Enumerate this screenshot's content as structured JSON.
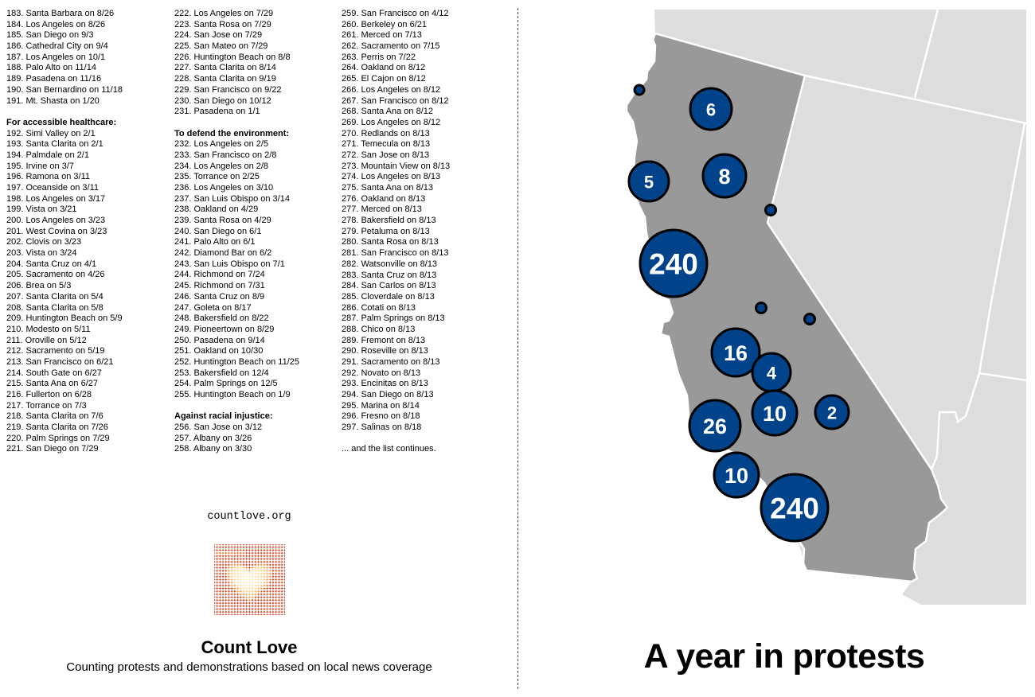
{
  "lists": [
    {
      "blocks": [
        {
          "heading": "",
          "items": [
            "183. Santa Barbara on 8/26",
            "184. Los Angeles on 8/26",
            "185. San Diego on 9/3",
            "186. Cathedral City on 9/4",
            "187. Los Angeles on 10/1",
            "188. Palo Alto on 11/14",
            "189. Pasadena on 11/16",
            "190. San Bernardino on 11/18",
            "191. Mt. Shasta on 1/20"
          ]
        },
        {
          "heading": "For accessible healthcare:",
          "items": [
            "192. Simi Valley on 2/1",
            "193. Santa Clarita on 2/1",
            "194. Palmdale on 2/1",
            "195. Irvine on 3/7",
            "196. Ramona on 3/11",
            "197. Oceanside on 3/11",
            "198. Los Angeles on 3/17",
            "199. Vista on 3/21",
            "200. Los Angeles on 3/23",
            "201. West Covina on 3/23",
            "202. Clovis on 3/23",
            "203. Vista on 3/24",
            "204. Santa Cruz on 4/1",
            "205. Sacramento on 4/26",
            "206. Brea on 5/3",
            "207. Santa Clarita on 5/4",
            "208. Santa Clarita on 5/8",
            "209. Huntington Beach on 5/9",
            "210. Modesto on 5/11",
            "211. Oroville on 5/12",
            "212. Sacramento on 5/19",
            "213. San Francisco on 6/21",
            "214. South Gate on 6/27",
            "215. Santa Ana on 6/27",
            "216. Fullerton on 6/28",
            "217. Torrance on 7/3",
            "218. Santa Clarita on 7/6",
            "219. Santa Clarita on 7/26",
            "220. Palm Springs on 7/29",
            "221. San Diego on 7/29"
          ]
        }
      ]
    },
    {
      "blocks": [
        {
          "heading": "",
          "items": [
            "222. Los Angeles on 7/29",
            "223. Santa Rosa on 7/29",
            "224. San Jose on 7/29",
            "225. San Mateo on 7/29",
            "226. Huntington Beach on 8/8",
            "227. Santa Clarita on 8/14",
            "228. Santa Clarita on 9/19",
            "229. San Francisco on 9/22",
            "230. San Diego on 10/12",
            "231. Pasadena on 1/1"
          ]
        },
        {
          "heading": "To defend the environment:",
          "items": [
            "232. Los Angeles on 2/5",
            "233. San Francisco on 2/8",
            "234. Los Angeles on 2/8",
            "235. Torrance on 2/25",
            "236. Los Angeles on 3/10",
            "237. San Luis Obispo on 3/14",
            "238. Oakland on 4/29",
            "239. Santa Rosa on 4/29",
            "240. San Diego on 6/1",
            "241. Palo Alto on 6/1",
            "242. Diamond Bar on 6/2",
            "243. San Luis Obispo on 7/1",
            "244. Richmond on 7/24",
            "245. Richmond on 7/31",
            "246. Santa Cruz on 8/9",
            "247. Goleta on 8/17",
            "248. Bakersfield on 8/22",
            "249. Pioneertown on 8/29",
            "250. Pasadena on 9/14",
            "251. Oakland on 10/30",
            "252. Huntington Beach on 11/25",
            "253. Bakersfield on 12/4",
            "254. Palm Springs on 12/5",
            "255. Huntington Beach on 1/9"
          ]
        },
        {
          "heading": "Against racial injustice:",
          "items": [
            "256. San Jose on 3/12",
            "257. Albany on 3/26",
            "258. Albany on 3/30"
          ]
        }
      ]
    },
    {
      "blocks": [
        {
          "heading": "",
          "items": [
            "259. San Francisco on 4/12",
            "260. Berkeley on 6/21",
            "261. Merced on 7/13",
            "262. Sacramento on 7/15",
            "263. Perris on 7/22",
            "264. Oakland on 8/12",
            "265. El Cajon on 8/12",
            "266. Los Angeles on 8/12",
            "267. San Francisco on 8/12",
            "268. Santa Ana on 8/12",
            "269. Los Angeles on 8/12",
            "270. Redlands on 8/13",
            "271. Temecula on 8/13",
            "272. San Jose on 8/13",
            "273. Mountain View on 8/13",
            "274. Los Angeles on 8/13",
            "275. Santa Ana on 8/13",
            "276. Oakland on 8/13",
            "277. Merced on 8/13",
            "278. Bakersfield on 8/13",
            "279. Petaluma on 8/13",
            "280. Santa Rosa on 8/13",
            "281. San Francisco on 8/13",
            "282. Watsonville on 8/13",
            "283. Santa Cruz on 8/13",
            "284. San Carlos on 8/13",
            "285. Cloverdale on 8/13",
            "286. Cotati on 8/13",
            "287. Palm Springs on 8/13",
            "288. Chico on 8/13",
            "289. Fremont on 8/13",
            "290. Roseville on 8/13",
            "291. Sacramento on 8/13",
            "292. Novato on 8/13",
            "293. Encinitas on 8/13",
            "294. San Diego on 8/13",
            "295. Marina on 8/14",
            "296. Fresno on 8/18",
            "297. Salinas on 8/18"
          ]
        },
        {
          "heading": "",
          "items": [
            "... and the list continues."
          ]
        }
      ]
    }
  ],
  "footer": {
    "site": "countlove.org",
    "brand": "Count Love",
    "tagline": "Counting protests and demonstrations based on local news coverage"
  },
  "map": {
    "title": "A year in protests",
    "colors": {
      "bubble": "#00438a",
      "state": "#999999",
      "neighbors": "#dddddd",
      "borders": "#ffffff"
    },
    "bubbles": [
      {
        "label": ""
      },
      {
        "label": "6"
      },
      {
        "label": "5"
      },
      {
        "label": "8"
      },
      {
        "label": ""
      },
      {
        "label": "240"
      },
      {
        "label": ""
      },
      {
        "label": ""
      },
      {
        "label": "16"
      },
      {
        "label": "4"
      },
      {
        "label": "10"
      },
      {
        "label": "2"
      },
      {
        "label": "26"
      },
      {
        "label": "10"
      },
      {
        "label": "240"
      }
    ]
  }
}
